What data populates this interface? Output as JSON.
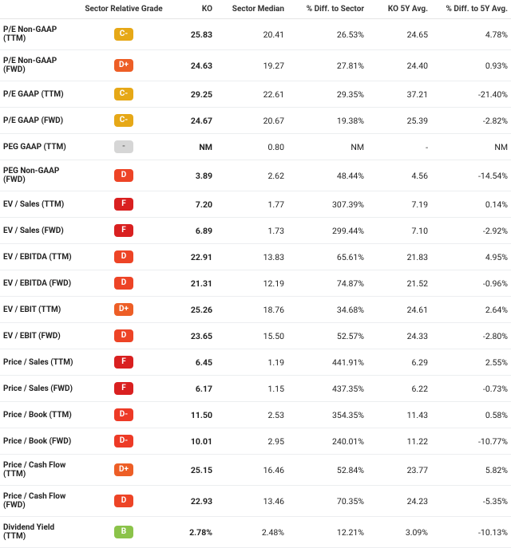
{
  "columns": [
    "",
    "Sector Relative Grade",
    "KO",
    "Sector Median",
    "% Diff. to Sector",
    "KO 5Y Avg.",
    "% Diff. to 5Y Avg."
  ],
  "grade_colors": {
    "C-": "#e6a817",
    "D+": "#ed5e26",
    "D": "#ed4426",
    "D-": "#ed3a26",
    "F": "#d92020",
    "B": "#8bc34a",
    "-": "#d6d6d6"
  },
  "rows": [
    {
      "metric": "P/E Non-GAAP (TTM)",
      "grade": "C-",
      "ko": "25.83",
      "median": "20.41",
      "diff_sector": "26.53%",
      "avg5": "24.65",
      "diff5": "4.78%"
    },
    {
      "metric": "P/E Non-GAAP (FWD)",
      "grade": "D+",
      "ko": "24.63",
      "median": "19.27",
      "diff_sector": "27.81%",
      "avg5": "24.40",
      "diff5": "0.93%"
    },
    {
      "metric": "P/E GAAP (TTM)",
      "grade": "C-",
      "ko": "29.25",
      "median": "22.61",
      "diff_sector": "29.35%",
      "avg5": "37.21",
      "diff5": "-21.40%"
    },
    {
      "metric": "P/E GAAP (FWD)",
      "grade": "C-",
      "ko": "24.67",
      "median": "20.67",
      "diff_sector": "19.38%",
      "avg5": "25.39",
      "diff5": "-2.82%"
    },
    {
      "metric": "PEG GAAP (TTM)",
      "grade": "-",
      "ko": "NM",
      "median": "0.80",
      "diff_sector": "NM",
      "avg5": "-",
      "diff5": "NM"
    },
    {
      "metric": "PEG Non-GAAP (FWD)",
      "grade": "D",
      "ko": "3.89",
      "median": "2.62",
      "diff_sector": "48.44%",
      "avg5": "4.56",
      "diff5": "-14.54%"
    },
    {
      "metric": "EV / Sales (TTM)",
      "grade": "F",
      "ko": "7.20",
      "median": "1.77",
      "diff_sector": "307.39%",
      "avg5": "7.19",
      "diff5": "0.14%"
    },
    {
      "metric": "EV / Sales (FWD)",
      "grade": "F",
      "ko": "6.89",
      "median": "1.73",
      "diff_sector": "299.44%",
      "avg5": "7.10",
      "diff5": "-2.92%"
    },
    {
      "metric": "EV / EBITDA (TTM)",
      "grade": "D",
      "ko": "22.91",
      "median": "13.83",
      "diff_sector": "65.61%",
      "avg5": "21.83",
      "diff5": "4.95%"
    },
    {
      "metric": "EV / EBITDA (FWD)",
      "grade": "D",
      "ko": "21.31",
      "median": "12.19",
      "diff_sector": "74.87%",
      "avg5": "21.52",
      "diff5": "-0.96%"
    },
    {
      "metric": "EV / EBIT (TTM)",
      "grade": "D+",
      "ko": "25.26",
      "median": "18.76",
      "diff_sector": "34.68%",
      "avg5": "24.61",
      "diff5": "2.64%"
    },
    {
      "metric": "EV / EBIT (FWD)",
      "grade": "D",
      "ko": "23.65",
      "median": "15.50",
      "diff_sector": "52.57%",
      "avg5": "24.33",
      "diff5": "-2.80%"
    },
    {
      "metric": "Price / Sales (TTM)",
      "grade": "F",
      "ko": "6.45",
      "median": "1.19",
      "diff_sector": "441.91%",
      "avg5": "6.29",
      "diff5": "2.55%"
    },
    {
      "metric": "Price / Sales (FWD)",
      "grade": "F",
      "ko": "6.17",
      "median": "1.15",
      "diff_sector": "437.35%",
      "avg5": "6.22",
      "diff5": "-0.73%"
    },
    {
      "metric": "Price / Book (TTM)",
      "grade": "D-",
      "ko": "11.50",
      "median": "2.53",
      "diff_sector": "354.35%",
      "avg5": "11.43",
      "diff5": "0.58%"
    },
    {
      "metric": "Price / Book (FWD)",
      "grade": "D-",
      "ko": "10.01",
      "median": "2.95",
      "diff_sector": "240.01%",
      "avg5": "11.22",
      "diff5": "-10.77%"
    },
    {
      "metric": "Price / Cash Flow (TTM)",
      "grade": "D+",
      "ko": "25.15",
      "median": "16.46",
      "diff_sector": "52.84%",
      "avg5": "23.77",
      "diff5": "5.82%"
    },
    {
      "metric": "Price / Cash Flow (FWD)",
      "grade": "D",
      "ko": "22.93",
      "median": "13.46",
      "diff_sector": "70.35%",
      "avg5": "24.23",
      "diff5": "-5.35%"
    },
    {
      "metric": "Dividend Yield (TTM)",
      "grade": "B",
      "ko": "2.78%",
      "median": "2.48%",
      "diff_sector": "12.21%",
      "avg5": "3.09%",
      "diff5": "-10.13%"
    }
  ]
}
